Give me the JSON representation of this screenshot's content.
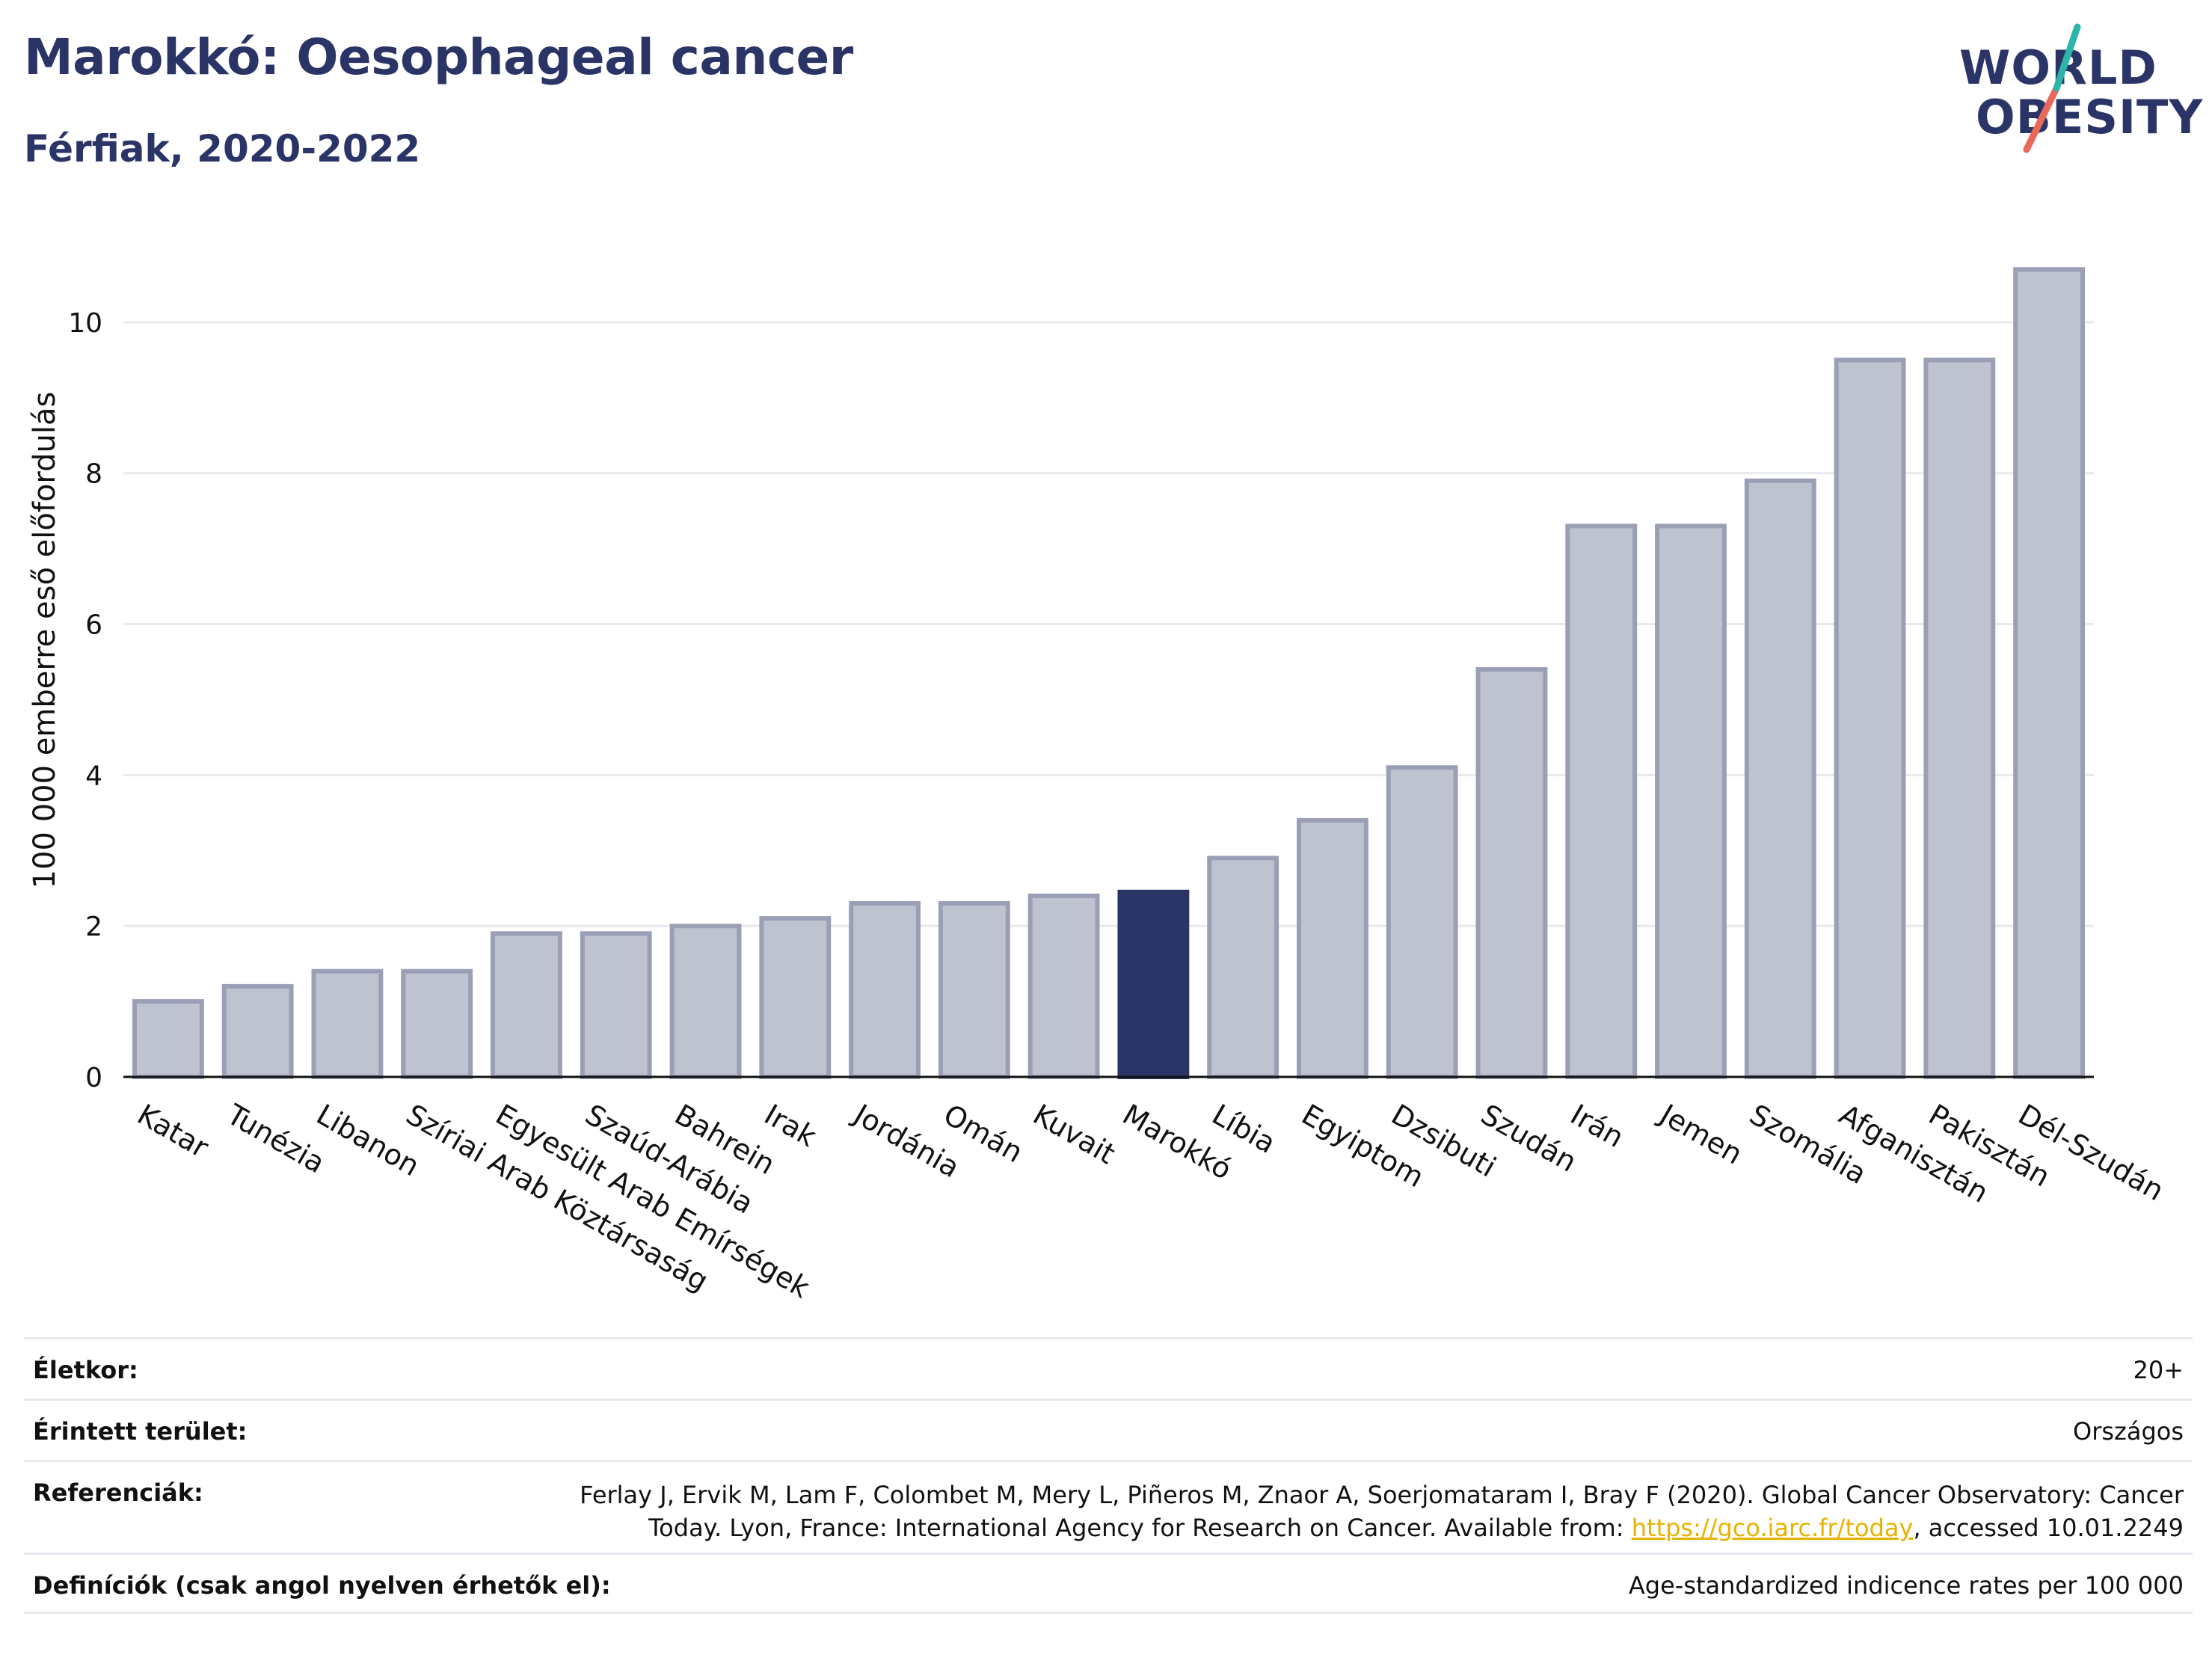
{
  "header": {
    "title": "Marokkó: Oesophageal cancer",
    "subtitle": "Férfiak, 2020-2022"
  },
  "logo": {
    "line1": "WORLD",
    "line2": "OBESITY"
  },
  "colors": {
    "bar": "#bfc2cf",
    "bar_stroke": "#9a9fb6",
    "highlight": "#2b3467",
    "grid": "#e8e9ee",
    "title": "#2b3467"
  },
  "chart_data": {
    "type": "bar",
    "ylabel": "100 000 emberre eső előfordulás",
    "xlabel": "",
    "ylim": [
      0,
      11
    ],
    "yticks": [
      0,
      2,
      4,
      6,
      8,
      10
    ],
    "grid": true,
    "highlight": "Marokkó",
    "categories": [
      "Katar",
      "Tunézia",
      "Libanon",
      "Szíriai Arab Köztársaság",
      "Egyesült Arab Emírségek",
      "Szaúd-Arábia",
      "Bahrein",
      "Irak",
      "Jordánia",
      "Omán",
      "Kuvait",
      "Marokkó",
      "Líbia",
      "Egyiptom",
      "Dzsibuti",
      "Szudán",
      "Irán",
      "Jemen",
      "Szomália",
      "Afganisztán",
      "Pakisztán",
      "Dél-Szudán"
    ],
    "values": [
      1.0,
      1.2,
      1.4,
      1.4,
      1.9,
      1.9,
      2.0,
      2.1,
      2.3,
      2.3,
      2.4,
      2.45,
      2.9,
      3.4,
      4.1,
      5.4,
      7.3,
      7.3,
      7.9,
      9.5,
      9.5,
      10.7
    ]
  },
  "footer": {
    "age_label": "Életkor:",
    "age_value": "20+",
    "area_label": "Érintett terület:",
    "area_value": "Országos",
    "ref_label": "Referenciák:",
    "ref_line1": "Ferlay J, Ervik M, Lam F, Colombet M, Mery L, Piñeros M, Znaor A, Soerjomataram I, Bray F (2020). Global Cancer Observatory: Cancer",
    "ref_line2_pre": "Today. Lyon, France: International Agency for Research on Cancer. Available from: ",
    "ref_link": "https://gco.iarc.fr/today",
    "ref_line2_post": ", accessed 10.01.2249",
    "def_label": "Definíciók (csak angol nyelven érhetők el):",
    "def_value": "Age-standardized indicence rates per 100 000"
  }
}
